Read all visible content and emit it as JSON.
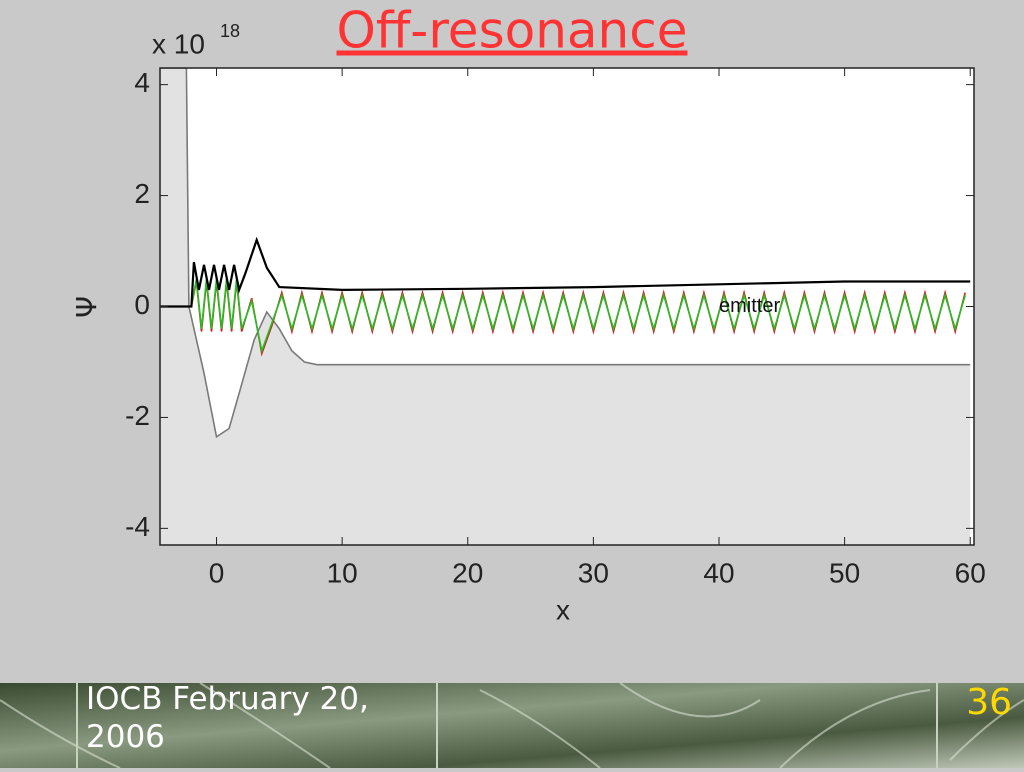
{
  "chart_data": {
    "type": "line",
    "title": "Off-resonance",
    "y_multiplier": "x 10",
    "y_exponent": "18",
    "xlabel": "x",
    "ylabel": "Ψ",
    "annotation": {
      "text": "emitter",
      "x": 40,
      "y": 0
    },
    "xlim": [
      -4.5,
      60.3
    ],
    "ylim": [
      -4.3,
      4.3
    ],
    "xticks": [
      0,
      10,
      20,
      30,
      40,
      50,
      60
    ],
    "yticks": [
      -4,
      -2,
      0,
      2,
      4
    ],
    "x": [
      -4.5,
      -2,
      -1.6,
      -1.2,
      -0.8,
      -0.4,
      0,
      0.4,
      0.8,
      1.2,
      1.6,
      2,
      2.8,
      3.6,
      4.4,
      5.2,
      6,
      6.8,
      7.6,
      8.4,
      9.2,
      10,
      10.8,
      11.6,
      12.4,
      13.2,
      14,
      14.8,
      15.6,
      16.4,
      17.2,
      18,
      18.8,
      19.6,
      20.4,
      21.2,
      22,
      22.8,
      23.6,
      24.4,
      25.2,
      26,
      26.8,
      27.6,
      28.4,
      29.2,
      30,
      30.8,
      31.6,
      32.4,
      33.2,
      34,
      34.8,
      35.6,
      36.4,
      37.2,
      38,
      38.8,
      39.6,
      40.4,
      41.2,
      42,
      42.8,
      43.6,
      44.4,
      45.2,
      46,
      46.8,
      47.6,
      48.4,
      49.2,
      50,
      50.8,
      51.6,
      52.4,
      53.2,
      54,
      54.8,
      55.6,
      56.4,
      57.2,
      58,
      58.8,
      59.6
    ],
    "series": [
      {
        "color": "#7a7a7a",
        "fill": "#e2e2e2",
        "x": [
          -4.5,
          -2.4,
          -2.2,
          -1,
          0,
          1,
          2,
          3,
          4,
          5,
          6,
          7,
          8,
          60
        ],
        "values": [
          4.3,
          4.3,
          0,
          -1.2,
          -2.35,
          -2.2,
          -1.4,
          -0.6,
          -0.1,
          -0.4,
          -0.8,
          -1.0,
          -1.05,
          -1.05
        ]
      },
      {
        "color": "#d02020",
        "values": [
          0,
          0,
          0.45,
          -0.45,
          0.45,
          -0.45,
          0.45,
          -0.45,
          0.45,
          -0.45,
          0.45,
          -0.45,
          0.15,
          -0.85,
          -0.35,
          0.25,
          -0.45,
          0.25,
          -0.45,
          0.25,
          -0.45,
          0.25,
          -0.45,
          0.25,
          -0.45,
          0.25,
          -0.45,
          0.25,
          -0.45,
          0.25,
          -0.45,
          0.25,
          -0.45,
          0.25,
          -0.45,
          0.25,
          -0.45,
          0.25,
          -0.45,
          0.25,
          -0.45,
          0.25,
          -0.45,
          0.25,
          -0.45,
          0.25,
          -0.45,
          0.25,
          -0.45,
          0.25,
          -0.45,
          0.25,
          -0.45,
          0.25,
          -0.45,
          0.25,
          -0.45,
          0.25,
          -0.45,
          0.25,
          -0.45,
          0.25,
          -0.45,
          0.25,
          -0.45,
          0.25,
          -0.45,
          0.25,
          -0.45,
          0.25,
          -0.45,
          0.25,
          -0.45,
          0.25,
          -0.45,
          0.25,
          -0.45,
          0.25,
          -0.45,
          0.25,
          -0.45,
          0.25,
          -0.45,
          0.25
        ]
      },
      {
        "color": "#22c022",
        "values": [
          0,
          0,
          0.5,
          -0.4,
          0.5,
          -0.4,
          0.5,
          -0.4,
          0.5,
          -0.4,
          0.5,
          -0.4,
          0.1,
          -0.8,
          -0.3,
          0.2,
          -0.4,
          0.2,
          -0.4,
          0.2,
          -0.4,
          0.2,
          -0.4,
          0.2,
          -0.4,
          0.2,
          -0.4,
          0.2,
          -0.4,
          0.2,
          -0.4,
          0.2,
          -0.4,
          0.2,
          -0.4,
          0.2,
          -0.4,
          0.2,
          -0.4,
          0.2,
          -0.4,
          0.2,
          -0.4,
          0.2,
          -0.4,
          0.2,
          -0.4,
          0.2,
          -0.4,
          0.2,
          -0.4,
          0.2,
          -0.4,
          0.2,
          -0.4,
          0.2,
          -0.4,
          0.2,
          -0.4,
          0.2,
          -0.4,
          0.2,
          -0.4,
          0.2,
          -0.4,
          0.2,
          -0.4,
          0.2,
          -0.4,
          0.2,
          -0.4,
          0.2,
          -0.4,
          0.2,
          -0.4,
          0.2,
          -0.4,
          0.2,
          -0.4,
          0.2,
          -0.4,
          0.2,
          -0.4,
          0.2
        ]
      },
      {
        "color": "#000000",
        "x": [
          -4.5,
          -2,
          -1.8,
          -1.4,
          -1,
          -0.6,
          -0.2,
          0.2,
          0.6,
          1,
          1.4,
          1.8,
          2.3,
          3.2,
          4,
          5,
          10,
          20,
          30,
          40,
          50,
          60
        ],
        "values": [
          0,
          0,
          0.8,
          0.3,
          0.75,
          0.3,
          0.75,
          0.3,
          0.75,
          0.3,
          0.75,
          0.3,
          0.6,
          1.2,
          0.7,
          0.35,
          0.3,
          0.32,
          0.35,
          0.4,
          0.45,
          0.45
        ]
      }
    ]
  },
  "footer": {
    "text": "IOCB February 20, 2006",
    "page": "36"
  }
}
